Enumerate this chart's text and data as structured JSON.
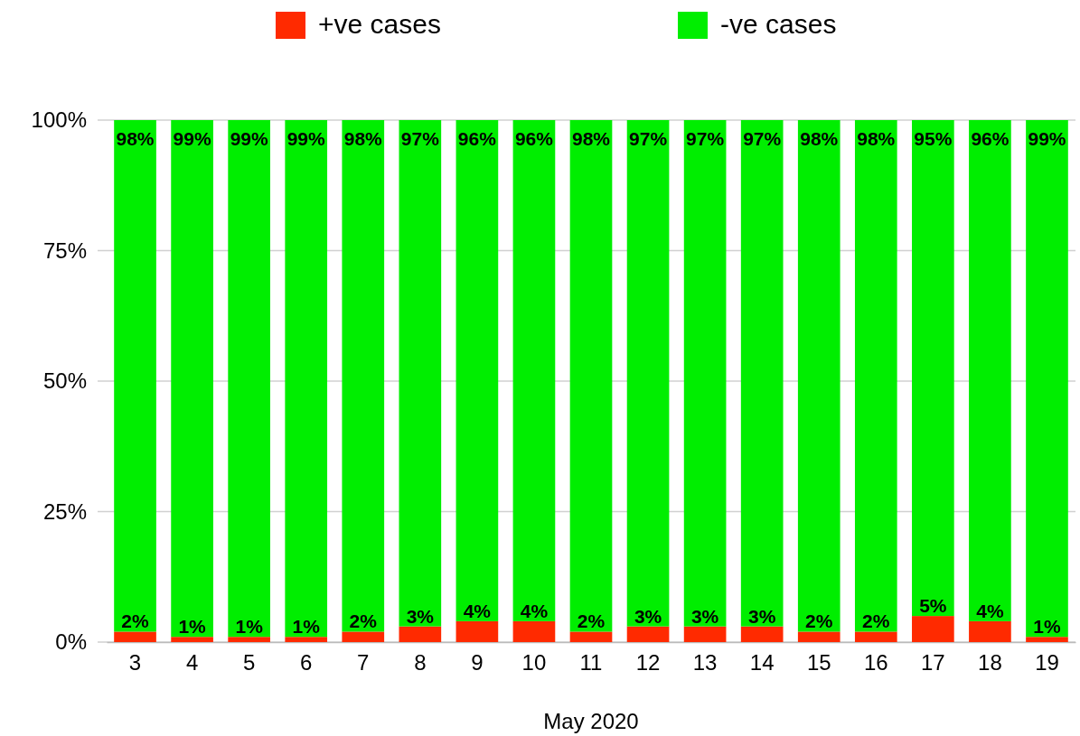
{
  "chart_data": {
    "type": "bar",
    "stacked": true,
    "xlabel": "May 2020",
    "categories": [
      "3",
      "4",
      "5",
      "6",
      "7",
      "8",
      "9",
      "10",
      "11",
      "12",
      "13",
      "14",
      "15",
      "16",
      "17",
      "18",
      "19"
    ],
    "series": [
      {
        "name": "+ve cases",
        "color": "#ff2a00",
        "values": [
          2,
          1,
          1,
          1,
          2,
          3,
          4,
          4,
          2,
          3,
          3,
          3,
          2,
          2,
          5,
          4,
          1
        ],
        "value_labels": [
          "2%",
          "1%",
          "1%",
          "1%",
          "2%",
          "3%",
          "4%",
          "4%",
          "2%",
          "3%",
          "3%",
          "3%",
          "2%",
          "2%",
          "5%",
          "4%",
          "1%"
        ]
      },
      {
        "name": "-ve cases",
        "color": "#00ee00",
        "values": [
          98,
          99,
          99,
          99,
          98,
          97,
          96,
          96,
          98,
          97,
          97,
          97,
          98,
          98,
          95,
          96,
          99
        ],
        "value_labels": [
          "98%",
          "99%",
          "99%",
          "99%",
          "98%",
          "97%",
          "96%",
          "96%",
          "98%",
          "97%",
          "97%",
          "97%",
          "98%",
          "98%",
          "95%",
          "96%",
          "99%"
        ]
      }
    ],
    "ylim": [
      0,
      100
    ],
    "yticks": [
      {
        "value": 0,
        "label": "0%"
      },
      {
        "value": 25,
        "label": "25%"
      },
      {
        "value": 50,
        "label": "50%"
      },
      {
        "value": 75,
        "label": "75%"
      },
      {
        "value": 100,
        "label": "100%"
      }
    ],
    "grid": "y",
    "legend": "top"
  }
}
